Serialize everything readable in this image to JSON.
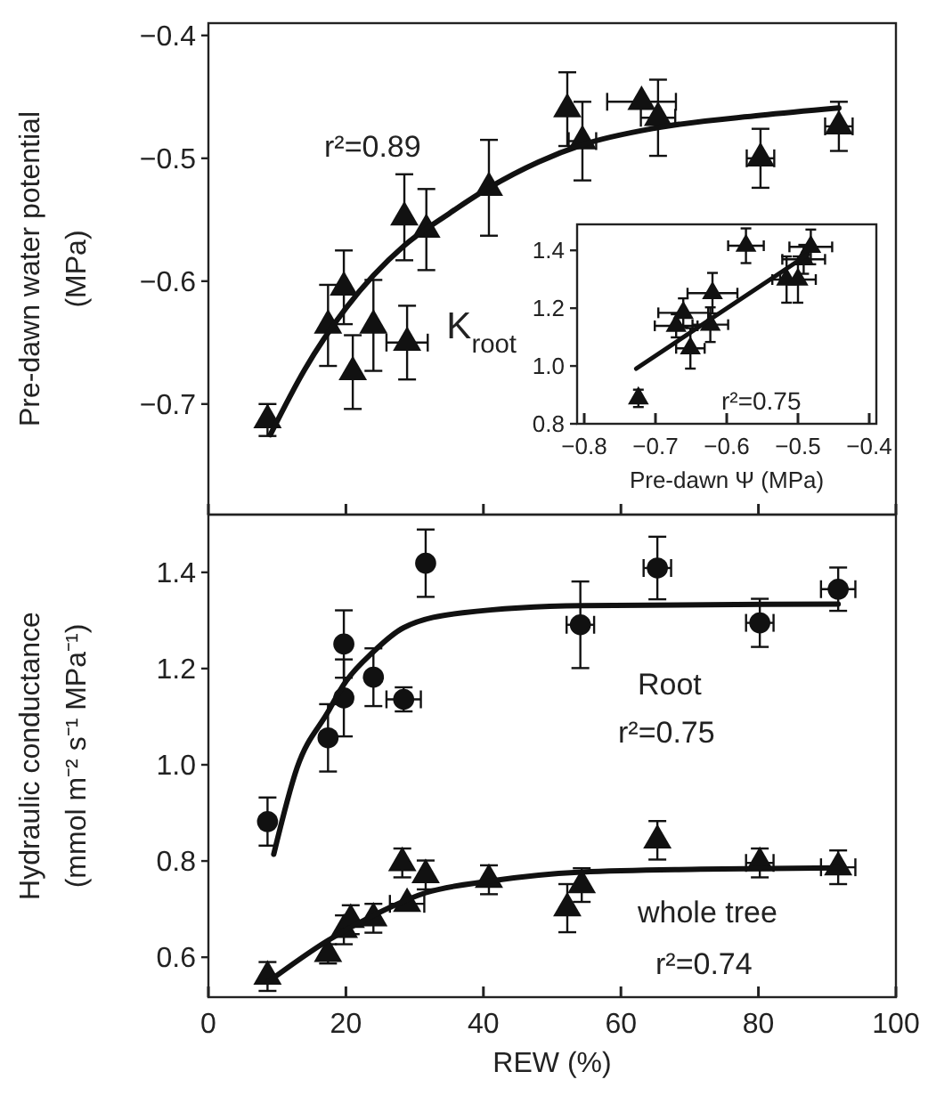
{
  "chart_data": [
    {
      "type": "scatter",
      "ylabel": "Pre-dawn water potential\n(MPa)",
      "xlim": [
        0,
        100
      ],
      "xticks": [
        0,
        20,
        40,
        60,
        80,
        100
      ],
      "ylim": [
        -0.79,
        -0.39
      ],
      "yticks": [
        {
          "value": -0.4,
          "label": "−0.4"
        },
        {
          "value": -0.5,
          "label": "−0.5"
        },
        {
          "value": -0.6,
          "label": "−0.6"
        },
        {
          "value": -0.7,
          "label": "−0.7"
        }
      ],
      "tick_labels": "y",
      "series": [
        {
          "marker": "triangle",
          "color": "#111111",
          "x": [
            8.6,
            17.4,
            19.7,
            21.0,
            24.0,
            28.5,
            28.9,
            31.7,
            40.8,
            52.2,
            54.4,
            63.0,
            65.4,
            80.3,
            91.7
          ],
          "values": [
            -0.713,
            -0.636,
            -0.605,
            -0.674,
            -0.636,
            -0.548,
            -0.65,
            -0.558,
            -0.524,
            -0.46,
            -0.486,
            -0.454,
            -0.467,
            -0.5,
            -0.474
          ],
          "errors": [
            0.013,
            0.033,
            0.03,
            0.03,
            0.037,
            0.035,
            0.03,
            0.033,
            0.039,
            0.03,
            0.032,
            null,
            0.031,
            0.024,
            0.02
          ],
          "xerrors": [
            null,
            null,
            null,
            null,
            null,
            null,
            3,
            null,
            null,
            null,
            2,
            5,
            2.5,
            2,
            2
          ]
        },
        {
          "type": "line",
          "color": "#111111",
          "x": [
            9,
            14,
            20,
            28.5,
            35,
            40.8,
            48,
            54.4,
            65.4,
            80.3,
            91.7
          ],
          "values": [
            -0.725,
            -0.672,
            -0.622,
            -0.571,
            -0.545,
            -0.524,
            -0.503,
            -0.489,
            -0.475,
            -0.465,
            -0.459
          ]
        }
      ],
      "annotations": [
        "r²=0.89"
      ]
    },
    {
      "type": "scatter",
      "xlabel": "Pre-dawn Ψ (MPa)",
      "ylabel": "K$_{root}$",
      "xlim": [
        -0.81,
        -0.39
      ],
      "xticks": [
        {
          "value": -0.8,
          "label": "−0.8"
        },
        {
          "value": -0.7,
          "label": "−0.7"
        },
        {
          "value": -0.6,
          "label": "−0.6"
        },
        {
          "value": -0.5,
          "label": "−0.5"
        },
        {
          "value": -0.4,
          "label": "−0.4"
        }
      ],
      "ylim": [
        0.8,
        1.49
      ],
      "yticks": [
        {
          "value": 0.8,
          "label": "0.8"
        },
        {
          "value": 1.0,
          "label": "1.0"
        },
        {
          "value": 1.2,
          "label": "1.2"
        },
        {
          "value": 1.4,
          "label": "1.4"
        }
      ],
      "series": [
        {
          "marker": "triangle",
          "color": "#111111",
          "x": [
            -0.724,
            -0.661,
            -0.671,
            -0.651,
            -0.62,
            -0.623,
            -0.573,
            -0.516,
            -0.5,
            -0.492,
            -0.482
          ],
          "values": [
            0.888,
            1.184,
            1.139,
            1.061,
            1.252,
            1.143,
            1.416,
            1.299,
            1.299,
            1.369,
            1.412
          ],
          "errors": [
            0.03,
            0.05,
            0.04,
            0.07,
            0.07,
            0.06,
            0.06,
            0.08,
            0.08,
            0.05,
            0.06
          ],
          "xerrors": [
            null,
            0.035,
            0.03,
            0.02,
            0.035,
            0.025,
            0.025,
            0.02,
            0.025,
            0.03,
            0.03
          ]
        },
        {
          "type": "line",
          "color": "#111111",
          "x": [
            -0.727,
            -0.486
          ],
          "values": [
            0.991,
            1.386
          ]
        }
      ],
      "annotations": [
        "r²=0.75"
      ]
    },
    {
      "type": "scatter",
      "xlabel": "REW (%)",
      "ylabel": "Hydraulic conductance\n(mmol m⁻² s⁻¹ MPa⁻¹)",
      "xlim": [
        0,
        100
      ],
      "xticks": [
        0,
        20,
        40,
        60,
        80,
        100
      ],
      "ylim": [
        0.517,
        1.52
      ],
      "yticks": [
        {
          "value": 0.6,
          "label": "0.6"
        },
        {
          "value": 0.8,
          "label": "0.8"
        },
        {
          "value": 1.0,
          "label": "1.0"
        },
        {
          "value": 1.2,
          "label": "1.2"
        },
        {
          "value": 1.4,
          "label": "1.4"
        }
      ],
      "series": [
        {
          "marker": "circle",
          "color": "#111111",
          "x": [
            8.6,
            17.4,
            19.7,
            19.7,
            24.0,
            28.4,
            31.6,
            54.1,
            65.3,
            80.2,
            91.6
          ],
          "values": [
            0.882,
            1.056,
            1.251,
            1.139,
            1.182,
            1.136,
            1.419,
            1.291,
            1.409,
            1.295,
            1.365
          ],
          "errors": [
            0.05,
            0.07,
            0.07,
            0.08,
            0.06,
            0.025,
            0.07,
            0.09,
            0.065,
            0.05,
            0.045
          ],
          "xerrors": [
            null,
            null,
            null,
            null,
            null,
            2.5,
            null,
            2,
            2,
            2,
            2.5
          ]
        },
        {
          "type": "line",
          "color": "#111111",
          "x": [
            9.5,
            12.9,
            17.4,
            19.7,
            24,
            28.4,
            37,
            54.3,
            91.6
          ],
          "values": [
            0.814,
            0.994,
            1.11,
            1.167,
            1.235,
            1.285,
            1.316,
            1.331,
            1.334
          ]
        },
        {
          "marker": "triangle",
          "color": "#111111",
          "x": [
            8.6,
            17.4,
            19.7,
            20.7,
            24.0,
            28.2,
            28.9,
            31.6,
            40.8,
            52.2,
            54.3,
            65.3,
            80.2,
            91.6
          ],
          "values": [
            0.56,
            0.607,
            0.657,
            0.678,
            0.681,
            0.796,
            0.711,
            0.771,
            0.761,
            0.702,
            0.75,
            0.843,
            0.796,
            0.787
          ],
          "errors": [
            0.03,
            0.02,
            0.03,
            0.03,
            0.03,
            0.03,
            null,
            0.03,
            0.03,
            0.05,
            0.035,
            0.04,
            0.03,
            0.035
          ],
          "xerrors": [
            null,
            null,
            null,
            null,
            null,
            null,
            2.5,
            null,
            null,
            null,
            null,
            null,
            2,
            2.5
          ]
        },
        {
          "type": "line",
          "color": "#111111",
          "x": [
            8.6,
            17.4,
            24,
            31.6,
            40.8,
            54.3,
            71.6,
            91.6
          ],
          "values": [
            0.548,
            0.635,
            0.687,
            0.734,
            0.758,
            0.777,
            0.783,
            0.786
          ]
        }
      ],
      "annotations": [
        "Root",
        "r²=0.75",
        "whole tree",
        "r²=0.74"
      ]
    }
  ]
}
